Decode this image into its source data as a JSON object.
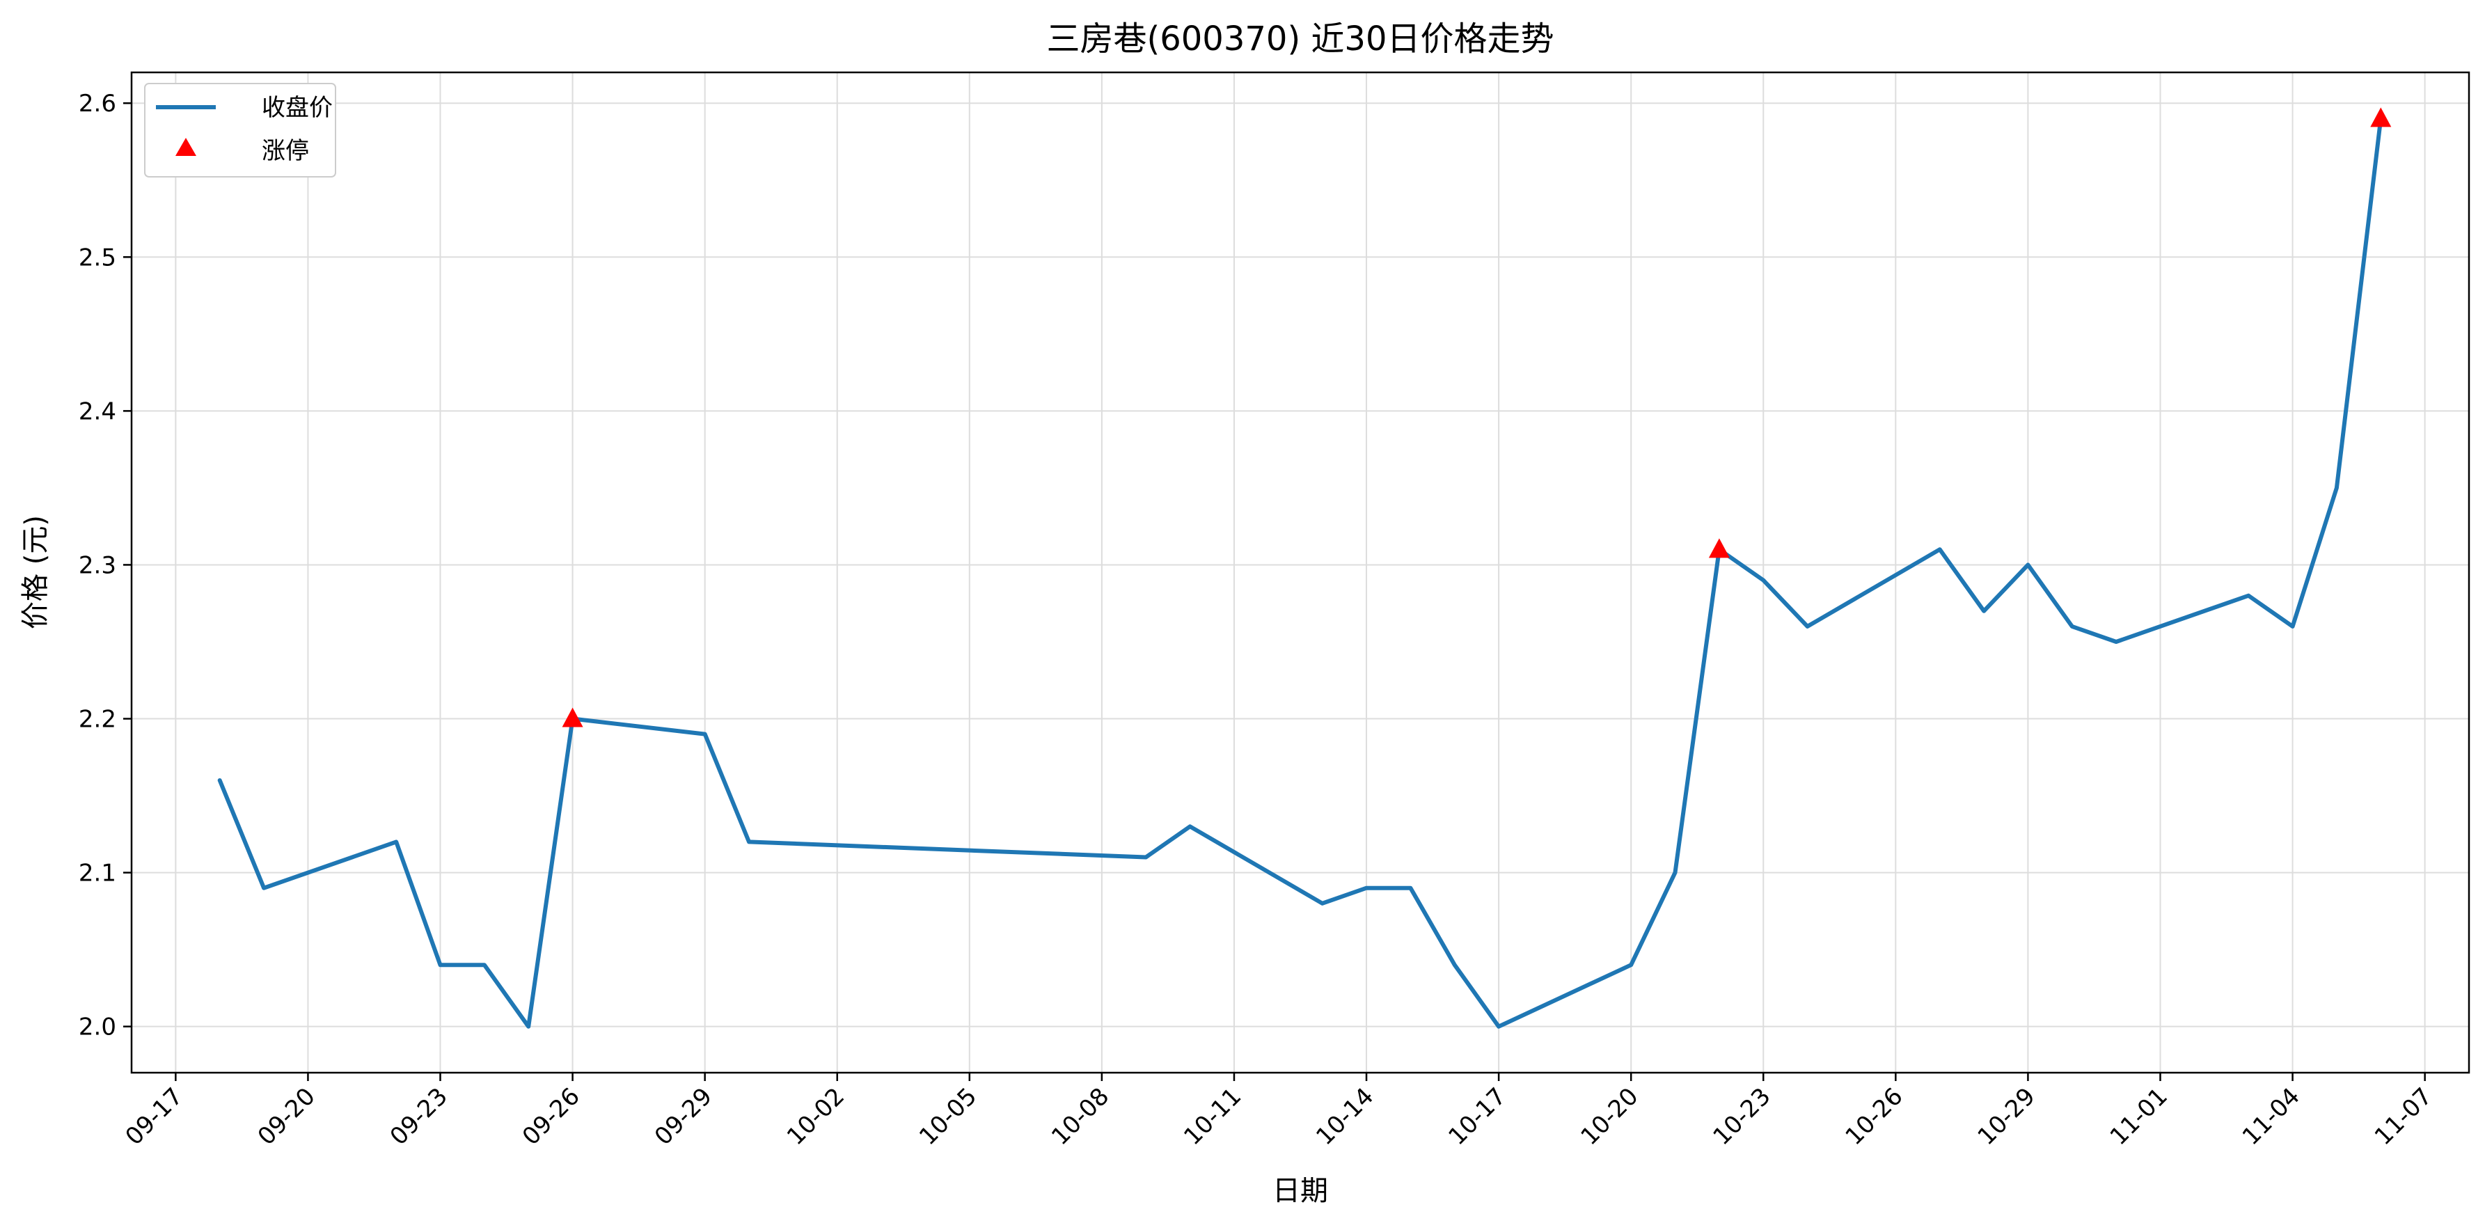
{
  "chart_data": {
    "type": "line",
    "title": "三房巷(600370) 近30日价格走势",
    "xlabel": "日期",
    "ylabel": "价格 (元)",
    "ylim": [
      1.97,
      2.62
    ],
    "xlim": [
      "2024-09-16",
      "2024-11-08"
    ],
    "y_ticks": [
      2.0,
      2.1,
      2.2,
      2.3,
      2.4,
      2.5,
      2.6
    ],
    "x_ticks": [
      "09-17",
      "09-20",
      "09-23",
      "09-26",
      "09-29",
      "10-02",
      "10-05",
      "10-08",
      "10-11",
      "10-14",
      "10-17",
      "10-20",
      "10-23",
      "10-26",
      "10-29",
      "11-01",
      "11-04",
      "11-07"
    ],
    "x_tick_dates": [
      "2024-09-17",
      "2024-09-20",
      "2024-09-23",
      "2024-09-26",
      "2024-09-29",
      "2024-10-02",
      "2024-10-05",
      "2024-10-08",
      "2024-10-11",
      "2024-10-14",
      "2024-10-17",
      "2024-10-20",
      "2024-10-23",
      "2024-10-26",
      "2024-10-29",
      "2024-11-01",
      "2024-11-04",
      "2024-11-07"
    ],
    "grid": true,
    "legend": "top-left",
    "series": [
      {
        "name": "收盘价",
        "color": "#1f77b4",
        "x": [
          "2024-09-18",
          "2024-09-19",
          "2024-09-22",
          "2024-09-23",
          "2024-09-24",
          "2024-09-25",
          "2024-09-26",
          "2024-09-29",
          "2024-09-30",
          "2024-10-09",
          "2024-10-10",
          "2024-10-13",
          "2024-10-14",
          "2024-10-15",
          "2024-10-16",
          "2024-10-17",
          "2024-10-20",
          "2024-10-21",
          "2024-10-22",
          "2024-10-23",
          "2024-10-24",
          "2024-10-27",
          "2024-10-28",
          "2024-10-29",
          "2024-10-30",
          "2024-10-31",
          "2024-11-03",
          "2024-11-04",
          "2024-11-05",
          "2024-11-06"
        ],
        "y": [
          2.16,
          2.09,
          2.12,
          2.04,
          2.04,
          2.0,
          2.2,
          2.19,
          2.12,
          2.11,
          2.13,
          2.08,
          2.09,
          2.09,
          2.04,
          2.0,
          2.04,
          2.1,
          2.31,
          2.29,
          2.26,
          2.31,
          2.27,
          2.3,
          2.26,
          2.25,
          2.28,
          2.26,
          2.35,
          2.59
        ]
      },
      {
        "name": "涨停",
        "kind": "scatter",
        "marker": "triangle",
        "color": "#ff0000",
        "x": [
          "2024-09-26",
          "2024-10-22",
          "2024-11-06"
        ],
        "y": [
          2.2,
          2.31,
          2.59
        ]
      }
    ]
  }
}
